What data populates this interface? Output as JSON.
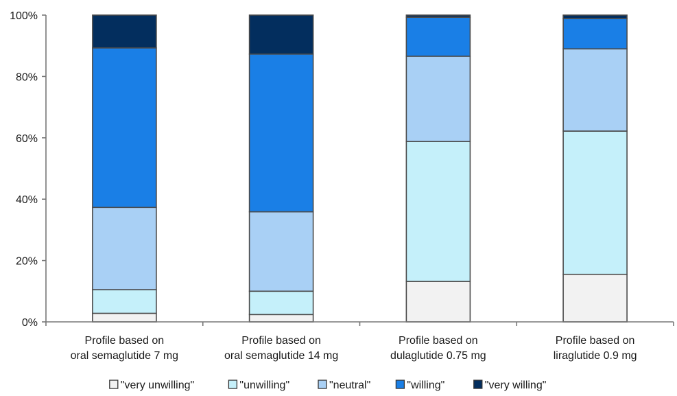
{
  "chart_data": {
    "type": "bar",
    "stacked": true,
    "categories": [
      [
        "Profile based on",
        "oral semaglutide 7 mg"
      ],
      [
        "Profile based on",
        "oral semaglutide 14 mg"
      ],
      [
        "Profile based on",
        "dulaglutide 0.75 mg"
      ],
      [
        "Profile based on",
        "liraglutide 0.9 mg"
      ]
    ],
    "series": [
      {
        "name": "\"very unwilling\"",
        "color": "#f2f2f2",
        "values": [
          2.8,
          2.4,
          13.2,
          15.5
        ]
      },
      {
        "name": "\"unwilling\"",
        "color": "#c5f0fa",
        "values": [
          7.7,
          7.6,
          45.6,
          46.7
        ]
      },
      {
        "name": "\"neutral\"",
        "color": "#a9d0f5",
        "values": [
          26.8,
          25.9,
          27.8,
          26.8
        ]
      },
      {
        "name": "\"willing\"",
        "color": "#1a7fe6",
        "values": [
          52.0,
          51.4,
          12.7,
          9.9
        ]
      },
      {
        "name": "\"very willing\"",
        "color": "#032e5e",
        "values": [
          10.7,
          12.7,
          0.7,
          1.1
        ]
      }
    ],
    "yticks": [
      "0%",
      "20%",
      "40%",
      "60%",
      "80%",
      "100%"
    ],
    "ylim": [
      0,
      100
    ],
    "grid": false,
    "legend_position": "bottom",
    "title": "",
    "xlabel": "",
    "ylabel": ""
  }
}
